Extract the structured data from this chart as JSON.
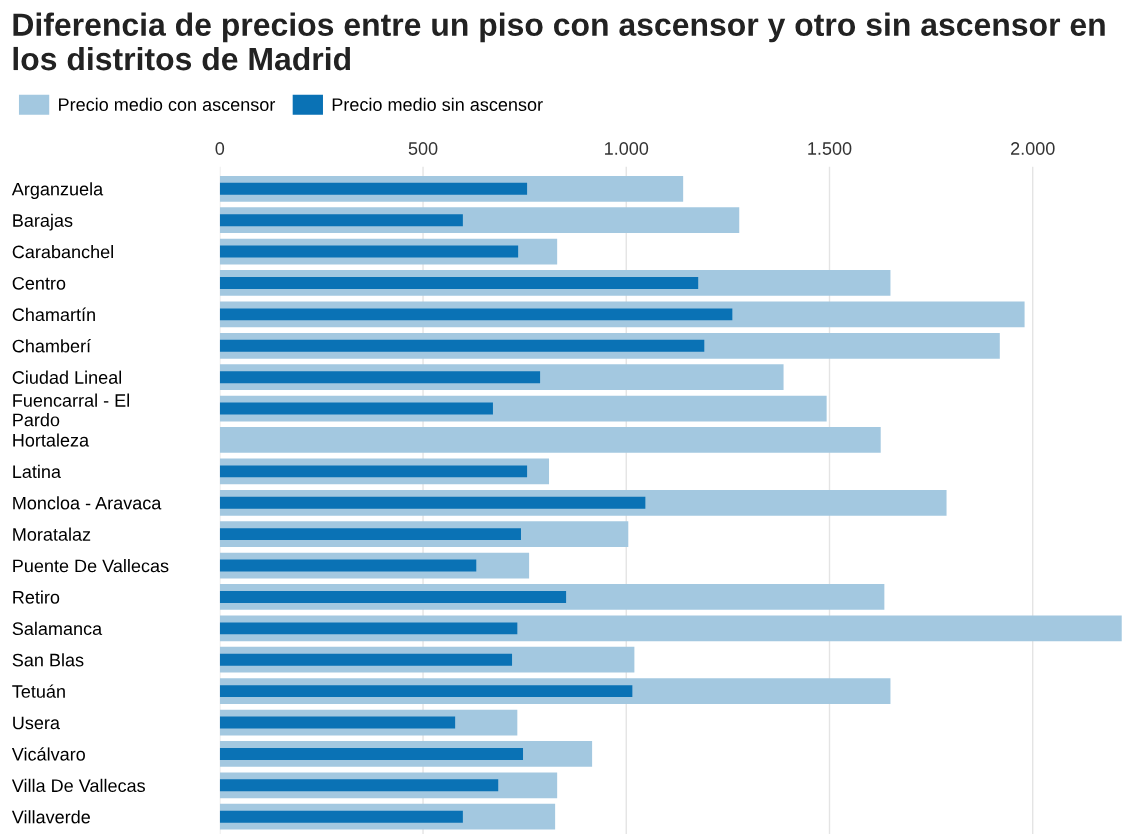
{
  "chart_data": {
    "type": "bar",
    "orientation": "horizontal",
    "title": "Diferencia de precios entre un piso con ascensor y otro sin ascensor en los distritos de Madrid",
    "categories": [
      "Arganzuela",
      "Barajas",
      "Carabanchel",
      "Centro",
      "Chamartín",
      "Chamberí",
      "Ciudad Lineal",
      "Fuencarral - El\nPardo",
      "Hortaleza",
      "Latina",
      "Moncloa - Aravaca",
      "Moratalaz",
      "Puente De Vallecas",
      "Retiro",
      "Salamanca",
      "San Blas",
      "Tetuán",
      "Usera",
      "Vicálvaro",
      "Villa De Vallecas",
      "Villaverde"
    ],
    "series": [
      {
        "name": "Precio medio con ascensor",
        "color": "#a3c8e0",
        "values": [
          1140,
          1278,
          830,
          1650,
          1980,
          1919,
          1387,
          1493,
          1626,
          810,
          1788,
          1005,
          761,
          1635,
          2219,
          1020,
          1650,
          732,
          916,
          830,
          825
        ]
      },
      {
        "name": "Precio medio sin ascensor",
        "color": "#0a72b5",
        "values": [
          756,
          598,
          734,
          1177,
          1261,
          1192,
          788,
          672,
          null,
          756,
          1047,
          741,
          631,
          852,
          732,
          719,
          1015,
          579,
          746,
          685,
          598
        ]
      }
    ],
    "xlim": [
      0,
      2230
    ],
    "xticks": [
      0,
      {
        "value": 500,
        "label": "500"
      },
      {
        "value": 1000,
        "label": "1.000"
      },
      {
        "value": 1500,
        "label": "1.500"
      },
      {
        "value": 2000,
        "label": "2.000"
      }
    ],
    "grid": "x",
    "legend": "top left"
  }
}
